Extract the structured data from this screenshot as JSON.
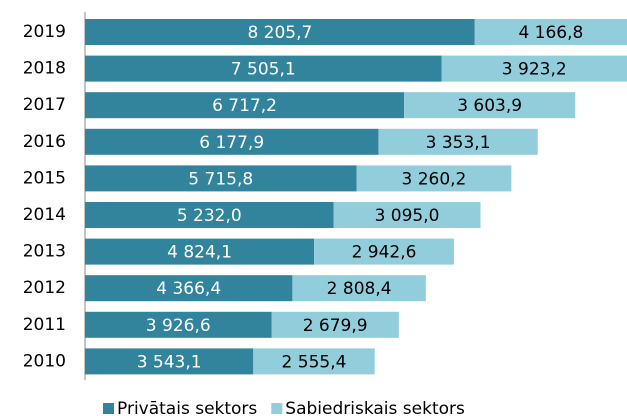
{
  "chart_data": {
    "type": "stacked_bar_horizontal",
    "categories": [
      "2019",
      "2018",
      "2017",
      "2016",
      "2015",
      "2014",
      "2013",
      "2012",
      "2011",
      "2010"
    ],
    "series": [
      {
        "name": "Privātais sektors",
        "color": "#31849b",
        "values": [
          8205.7,
          7505.1,
          6717.2,
          6177.9,
          5715.8,
          5232.0,
          4824.1,
          4366.4,
          3926.6,
          3543.1
        ],
        "value_labels": [
          "8 205,7",
          "7 505,1",
          "6 717,2",
          "6 177,9",
          "5 715,8",
          "5 232,0",
          "4 824,1",
          "4 366,4",
          "3 926,6",
          "3 543,1"
        ]
      },
      {
        "name": "Sabiedriskais sektors",
        "color": "#92cddc",
        "values": [
          4166.8,
          3923.2,
          3603.9,
          3353.1,
          3260.2,
          3095.0,
          2942.6,
          2808.4,
          2679.9,
          2555.4
        ],
        "value_labels": [
          "4 166,8",
          "3 923,2",
          "3 603,9",
          "3 353,1",
          "3 260,2",
          "3 095,0",
          "2 942,6",
          "2 808,4",
          "2 679,9",
          "2 555,4"
        ]
      }
    ],
    "legend": "bottom"
  }
}
